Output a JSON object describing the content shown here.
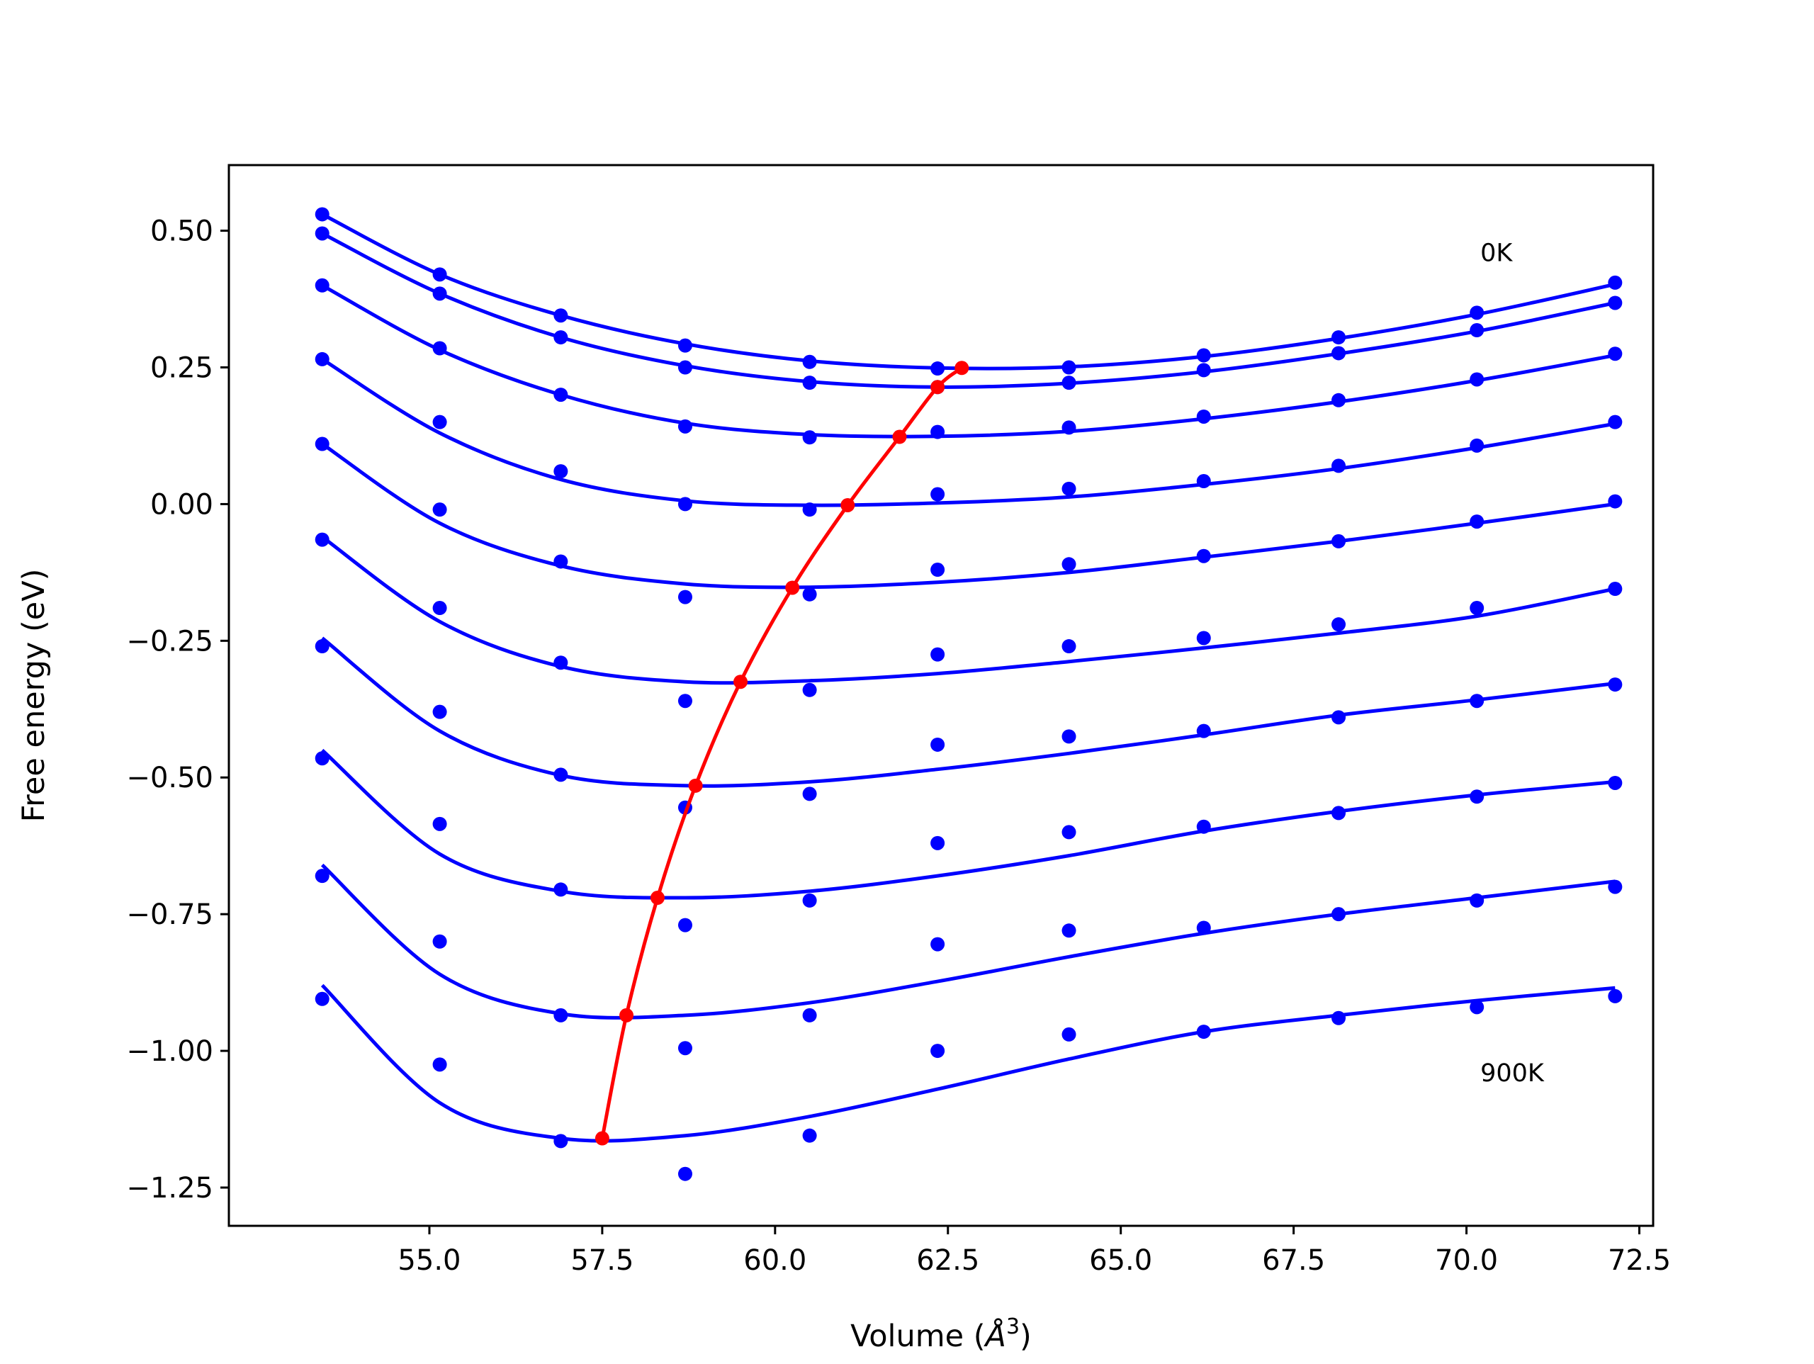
{
  "chart_data": {
    "type": "line",
    "title": "",
    "xlabel": "Volume (Å³)",
    "xlabel_parts": {
      "text": "Volume (",
      "symbol": "Å",
      "exponent": "3",
      "close": ")"
    },
    "ylabel": "Free energy (eV)",
    "xlim": [
      52.1,
      72.7
    ],
    "ylim": [
      -1.32,
      0.62
    ],
    "grid": false,
    "legend": "none",
    "xticks": [
      55.0,
      57.5,
      60.0,
      62.5,
      65.0,
      67.5,
      70.0,
      72.5
    ],
    "xtick_labels": [
      "55.0",
      "57.5",
      "60.0",
      "62.5",
      "65.0",
      "67.5",
      "70.0",
      "72.5"
    ],
    "yticks": [
      0.5,
      0.25,
      0.0,
      -0.25,
      -0.5,
      -0.75,
      -1.0,
      -1.25
    ],
    "ytick_labels": [
      "0.50",
      "0.25",
      "0.00",
      "−0.25",
      "−0.50",
      "−0.75",
      "−1.00",
      "−1.25"
    ],
    "annotations": [
      {
        "text": "0K",
        "x": 70.2,
        "y": 0.46
      },
      {
        "text": "900K",
        "x": 70.2,
        "y": -1.04
      }
    ],
    "volumes": [
      53.45,
      55.15,
      56.9,
      58.7,
      60.5,
      62.35,
      64.25,
      66.2,
      68.15,
      70.15,
      72.15
    ],
    "series": [
      {
        "points": [
          0.53,
          0.42,
          0.345,
          0.29,
          0.26,
          0.248,
          0.25,
          0.272,
          0.305,
          0.35,
          0.405
        ],
        "fit": [
          0.53,
          0.42,
          0.345,
          0.293,
          0.262,
          0.249,
          0.251,
          0.27,
          0.303,
          0.347,
          0.402
        ]
      },
      {
        "points": [
          0.495,
          0.385,
          0.305,
          0.25,
          0.222,
          0.214,
          0.222,
          0.245,
          0.276,
          0.318,
          0.368
        ],
        "fit": [
          0.495,
          0.385,
          0.305,
          0.253,
          0.224,
          0.214,
          0.221,
          0.242,
          0.275,
          0.316,
          0.368
        ]
      },
      {
        "points": [
          0.4,
          0.285,
          0.2,
          0.142,
          0.122,
          0.132,
          0.14,
          0.16,
          0.19,
          0.228,
          0.275
        ],
        "fit": [
          0.4,
          0.282,
          0.2,
          0.148,
          0.127,
          0.124,
          0.133,
          0.156,
          0.187,
          0.226,
          0.272
        ]
      },
      {
        "points": [
          0.265,
          0.15,
          0.06,
          0.0,
          -0.01,
          0.018,
          0.028,
          0.042,
          0.07,
          0.107,
          0.15
        ],
        "fit": [
          0.265,
          0.13,
          0.045,
          0.006,
          -0.002,
          0.002,
          0.013,
          0.036,
          0.065,
          0.103,
          0.147
        ]
      },
      {
        "points": [
          0.11,
          -0.01,
          -0.105,
          -0.17,
          -0.165,
          -0.12,
          -0.11,
          -0.095,
          -0.068,
          -0.032,
          0.005
        ],
        "fit": [
          0.11,
          -0.035,
          -0.113,
          -0.146,
          -0.152,
          -0.143,
          -0.125,
          -0.097,
          -0.068,
          -0.035,
          0.0
        ]
      },
      {
        "points": [
          -0.065,
          -0.19,
          -0.29,
          -0.36,
          -0.34,
          -0.275,
          -0.26,
          -0.245,
          -0.22,
          -0.19,
          -0.155
        ],
        "fit": [
          -0.06,
          -0.215,
          -0.297,
          -0.325,
          -0.323,
          -0.31,
          -0.288,
          -0.263,
          -0.236,
          -0.205,
          -0.155
        ]
      },
      {
        "points": [
          -0.26,
          -0.38,
          -0.495,
          -0.555,
          -0.53,
          -0.44,
          -0.425,
          -0.415,
          -0.39,
          -0.36,
          -0.33
        ],
        "fit": [
          -0.245,
          -0.415,
          -0.496,
          -0.515,
          -0.508,
          -0.485,
          -0.456,
          -0.422,
          -0.386,
          -0.358,
          -0.328
        ]
      },
      {
        "points": [
          -0.465,
          -0.585,
          -0.705,
          -0.77,
          -0.725,
          -0.62,
          -0.6,
          -0.59,
          -0.565,
          -0.535,
          -0.51
        ],
        "fit": [
          -0.45,
          -0.64,
          -0.708,
          -0.72,
          -0.708,
          -0.68,
          -0.643,
          -0.598,
          -0.562,
          -0.532,
          -0.508
        ]
      },
      {
        "points": [
          -0.68,
          -0.8,
          -0.935,
          -0.995,
          -0.935,
          -0.805,
          -0.78,
          -0.775,
          -0.75,
          -0.725,
          -0.7
        ],
        "fit": [
          -0.66,
          -0.86,
          -0.932,
          -0.935,
          -0.912,
          -0.873,
          -0.828,
          -0.785,
          -0.75,
          -0.72,
          -0.69
        ]
      },
      {
        "points": [
          -0.905,
          -1.025,
          -1.165,
          -1.225,
          -1.155,
          -1.0,
          -0.97,
          -0.965,
          -0.94,
          -0.92,
          -0.9
        ],
        "fit": [
          -0.88,
          -1.095,
          -1.16,
          -1.155,
          -1.12,
          -1.07,
          -1.015,
          -0.965,
          -0.935,
          -0.908,
          -0.885
        ]
      }
    ],
    "minima": {
      "x": [
        62.7,
        62.35,
        61.8,
        61.05,
        60.25,
        59.5,
        58.85,
        58.3,
        57.85,
        57.5
      ],
      "y": [
        0.249,
        0.214,
        0.123,
        -0.002,
        -0.153,
        -0.325,
        -0.515,
        -0.72,
        -0.935,
        -1.16
      ]
    },
    "colors": {
      "points": "#0000ff",
      "fits": "#0000ff",
      "minima": "#ff0000",
      "frame": "#000000"
    }
  }
}
